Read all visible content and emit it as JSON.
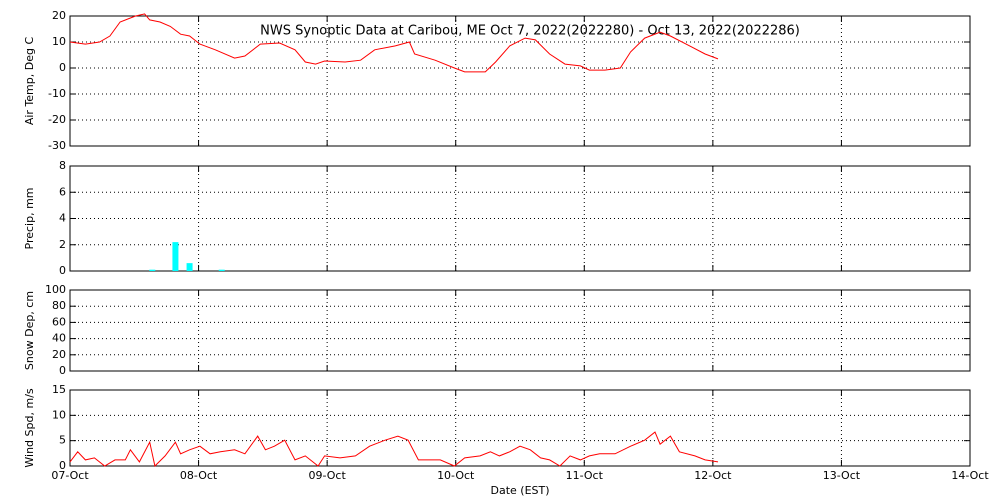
{
  "chart_data": [
    {
      "type": "line",
      "title": "NWS Synoptic Data at Caribou, ME   Oct  7, 2022(2022280) - Oct 13, 2022(2022286)",
      "ylabel": "Air Temp, Deg C",
      "color": "#ff0000",
      "grid": true,
      "xlim": [
        7,
        14
      ],
      "xticks": [
        7,
        8,
        9,
        10,
        11,
        12,
        13,
        14
      ],
      "ylim": [
        -30,
        20
      ],
      "yticks": [
        -30,
        -20,
        -10,
        0,
        10,
        20
      ],
      "x": [
        7.0,
        7.12,
        7.23,
        7.31,
        7.39,
        7.51,
        7.58,
        7.62,
        7.7,
        7.78,
        7.86,
        7.93,
        8.01,
        8.13,
        8.28,
        8.36,
        8.48,
        8.63,
        8.75,
        8.83,
        8.91,
        8.98,
        9.14,
        9.26,
        9.37,
        9.53,
        9.64,
        9.68,
        9.84,
        9.99,
        10.07,
        10.23,
        10.31,
        10.42,
        10.54,
        10.62,
        10.73,
        10.85,
        10.97,
        11.04,
        11.16,
        11.28,
        11.36,
        11.47,
        11.59,
        11.67,
        11.82,
        11.94,
        12.04
      ],
      "values": [
        10,
        9.2,
        10,
        12.3,
        17.7,
        20,
        20.8,
        18.5,
        17.7,
        16,
        13,
        12.3,
        9.2,
        7,
        3.8,
        4.6,
        9.2,
        9.6,
        7,
        2.3,
        1.5,
        2.7,
        2.3,
        3,
        7,
        8.5,
        10,
        5.4,
        3,
        0,
        -1.5,
        -1.5,
        2.3,
        8.5,
        11.5,
        10.8,
        5.4,
        1.5,
        0.8,
        -0.8,
        -0.8,
        0,
        6.2,
        11.5,
        13.8,
        12.3,
        8.5,
        5.4,
        3.5
      ]
    },
    {
      "type": "bar",
      "ylabel": "Precip, mm",
      "color": "#00ffff",
      "grid": true,
      "xlim": [
        7,
        14
      ],
      "xticks": [
        7,
        8,
        9,
        10,
        11,
        12,
        13,
        14
      ],
      "ylim": [
        0,
        8
      ],
      "yticks": [
        0,
        2,
        4,
        6,
        8
      ],
      "x": [
        7.64,
        7.82,
        7.93,
        8.18
      ],
      "values": [
        0.1,
        2.2,
        0.6,
        0.1
      ]
    },
    {
      "type": "line",
      "ylabel": "Snow Dep, cm",
      "grid": true,
      "xlim": [
        7,
        14
      ],
      "xticks": [
        7,
        8,
        9,
        10,
        11,
        12,
        13,
        14
      ],
      "ylim": [
        0,
        100
      ],
      "yticks": [
        0,
        20,
        40,
        60,
        80,
        100
      ]
    },
    {
      "type": "line",
      "ylabel": "Wind Spd, m/s",
      "xlabel": "Date (EST)",
      "color": "#ff0000",
      "grid": true,
      "xlim": [
        7,
        14
      ],
      "xticks": [
        {
          "value": 7,
          "label": "07-Oct"
        },
        {
          "value": 8,
          "label": "08-Oct"
        },
        {
          "value": 9,
          "label": "09-Oct"
        },
        {
          "value": 10,
          "label": "10-Oct"
        },
        {
          "value": 11,
          "label": "11-Oct"
        },
        {
          "value": 12,
          "label": "12-Oct"
        },
        {
          "value": 13,
          "label": "13-Oct"
        },
        {
          "value": 14,
          "label": "14-Oct"
        }
      ],
      "ylim": [
        0,
        15
      ],
      "yticks": [
        0,
        5,
        10,
        15
      ],
      "x": [
        7.0,
        7.06,
        7.12,
        7.19,
        7.27,
        7.35,
        7.43,
        7.47,
        7.54,
        7.62,
        7.66,
        7.74,
        7.82,
        7.86,
        7.93,
        8.01,
        8.09,
        8.17,
        8.28,
        8.36,
        8.46,
        8.52,
        8.59,
        8.67,
        8.75,
        8.83,
        8.93,
        8.98,
        9.1,
        9.22,
        9.33,
        9.45,
        9.55,
        9.63,
        9.71,
        9.88,
        9.99,
        10.07,
        10.19,
        10.27,
        10.34,
        10.42,
        10.5,
        10.58,
        10.66,
        10.73,
        10.81,
        10.89,
        10.97,
        11.04,
        11.12,
        11.24,
        11.36,
        11.47,
        11.55,
        11.59,
        11.67,
        11.74,
        11.86,
        11.94,
        12.04
      ],
      "values": [
        0.8,
        2.8,
        1.2,
        1.6,
        0,
        1.2,
        1.2,
        3.2,
        0.8,
        4.7,
        0,
        2,
        4.7,
        2.4,
        3.2,
        3.9,
        2.4,
        2.8,
        3.2,
        2.4,
        5.9,
        3.2,
        3.9,
        5.1,
        1.2,
        2,
        0,
        2,
        1.6,
        2,
        3.9,
        5.1,
        5.9,
        5.1,
        1.2,
        1.2,
        0,
        1.6,
        2,
        2.8,
        2,
        2.8,
        3.9,
        3.2,
        1.6,
        1.2,
        0,
        2,
        1.2,
        2,
        2.4,
        2.4,
        3.9,
        5.1,
        6.7,
        4.3,
        5.9,
        2.8,
        2,
        1.2,
        0.8
      ]
    }
  ]
}
